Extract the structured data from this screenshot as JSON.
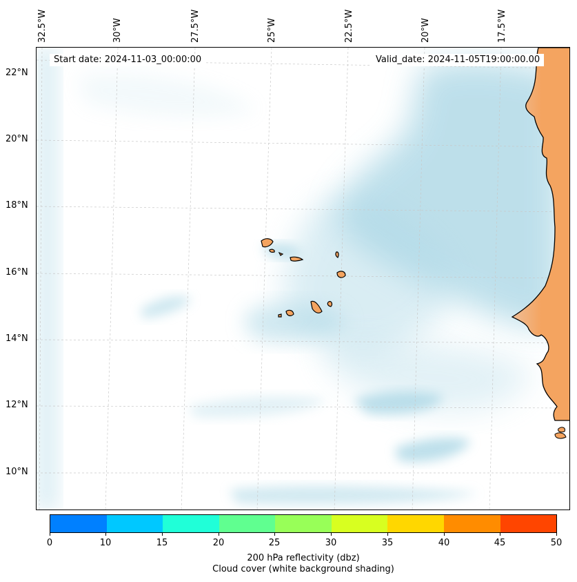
{
  "map": {
    "start_date": "Start date: 2024-11-03_00:00:00",
    "valid_date": "Valid_date: 2024-11-05T19:00:00.00",
    "lon_ticks": [
      "32.5°W",
      "30°W",
      "27.5°W",
      "25°W",
      "22.5°W",
      "20°W",
      "17.5°W"
    ],
    "lat_ticks": [
      "22°N",
      "20°N",
      "18°N",
      "16°N",
      "14°N",
      "12°N",
      "10°N"
    ],
    "land_color": "#f4a460",
    "cloud_color": "#add8e6",
    "coastline_color": "#000000",
    "gridline_style": "dashed light gray"
  },
  "colorbar": {
    "ticks": [
      "0",
      "10",
      "15",
      "20",
      "25",
      "30",
      "35",
      "40",
      "45",
      "50"
    ],
    "colors": [
      "#0080ff",
      "#00c8ff",
      "#20ffd8",
      "#60ff90",
      "#98ff58",
      "#d8ff20",
      "#ffd700",
      "#ff8c00",
      "#ff4500"
    ],
    "label_line1": "200 hPa reflectivity (dbz)",
    "label_line2": "Cloud cover (white background shading)"
  }
}
